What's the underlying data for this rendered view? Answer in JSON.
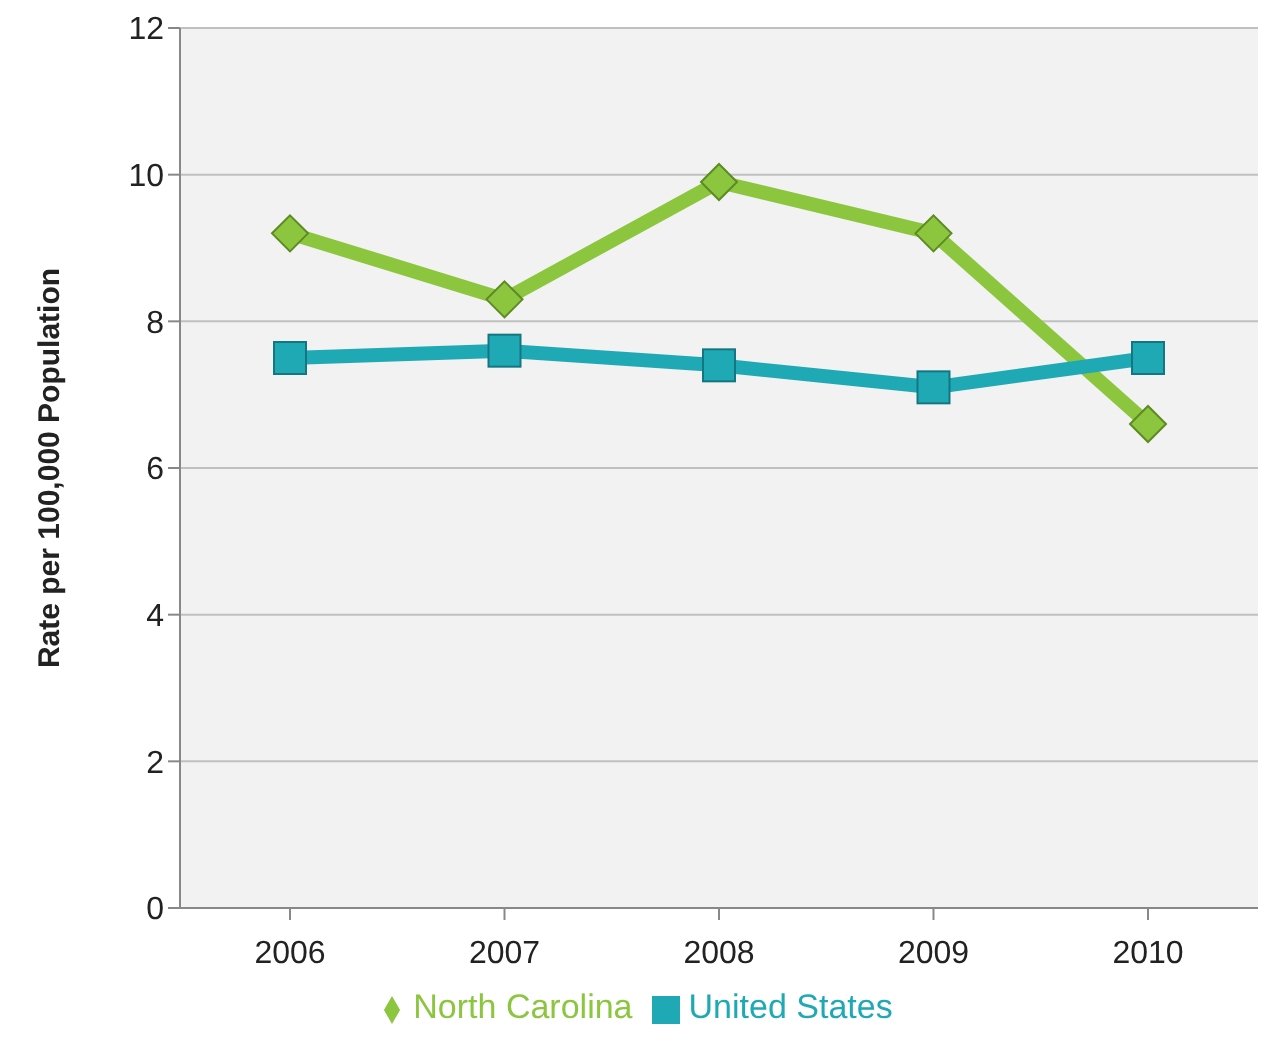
{
  "chart_data": {
    "type": "line",
    "ylabel": "Rate per 100,000 Population",
    "categories": [
      "2006",
      "2007",
      "2008",
      "2009",
      "2010"
    ],
    "ylim": [
      0,
      12
    ],
    "yticks": [
      0,
      2,
      4,
      6,
      8,
      10,
      12
    ],
    "grid": "y",
    "legend": "bottom",
    "series": [
      {
        "name": "North Carolina",
        "color": "#8cc63f",
        "marker": "diamond",
        "values": [
          9.2,
          8.3,
          9.9,
          9.2,
          6.6
        ]
      },
      {
        "name": "United States",
        "color": "#1fa9b5",
        "marker": "square",
        "values": [
          7.5,
          7.6,
          7.4,
          7.1,
          7.5
        ]
      }
    ]
  }
}
